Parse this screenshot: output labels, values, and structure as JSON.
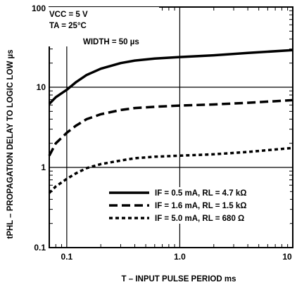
{
  "chart_data": {
    "type": "line",
    "title": "",
    "xlabel": "T – INPUT PULSE PERIOD ms",
    "ylabel": "tPHL – PROPAGATION DELAY TO LOGIC LOW µs",
    "xscale": "log",
    "yscale": "log",
    "xlim": [
      0.07,
      10
    ],
    "ylim": [
      0.1,
      100
    ],
    "grid": true,
    "legend_position": "bottom-right",
    "x_ticks": [
      "0.1",
      "1.0",
      "10"
    ],
    "y_ticks": [
      "0.1",
      "1",
      "10",
      "100"
    ],
    "annotations": [
      "VCC = 5 V",
      "TA = 25°C",
      "WIDTH = 50 µs"
    ],
    "series": [
      {
        "name": "IF = 0.5 mA, RL = 4.7 kΩ",
        "style": "solid",
        "x": [
          0.07,
          0.08,
          0.1,
          0.12,
          0.15,
          0.2,
          0.3,
          0.4,
          0.6,
          1.0,
          2.0,
          4.0,
          10.0
        ],
        "y": [
          6.2,
          7.5,
          9.3,
          11.5,
          14.2,
          17.0,
          20.0,
          21.5,
          22.8,
          23.8,
          25.0,
          26.8,
          29.0
        ]
      },
      {
        "name": "IF = 1.6 mA, RL = 1.5 kΩ",
        "style": "dashed",
        "x": [
          0.07,
          0.08,
          0.1,
          0.12,
          0.15,
          0.2,
          0.3,
          0.4,
          0.6,
          1.0,
          2.0,
          4.0,
          10.0
        ],
        "y": [
          1.4,
          2.0,
          2.7,
          3.3,
          4.0,
          4.6,
          5.2,
          5.5,
          5.7,
          5.9,
          6.1,
          6.4,
          6.9
        ]
      },
      {
        "name": "IF = 5.0 mA, RL = 680 Ω",
        "style": "dotted",
        "x": [
          0.07,
          0.08,
          0.1,
          0.12,
          0.15,
          0.2,
          0.3,
          0.4,
          0.6,
          1.0,
          2.0,
          4.0,
          10.0
        ],
        "y": [
          0.48,
          0.58,
          0.72,
          0.84,
          0.98,
          1.1,
          1.22,
          1.3,
          1.36,
          1.4,
          1.46,
          1.56,
          1.75
        ]
      }
    ]
  }
}
